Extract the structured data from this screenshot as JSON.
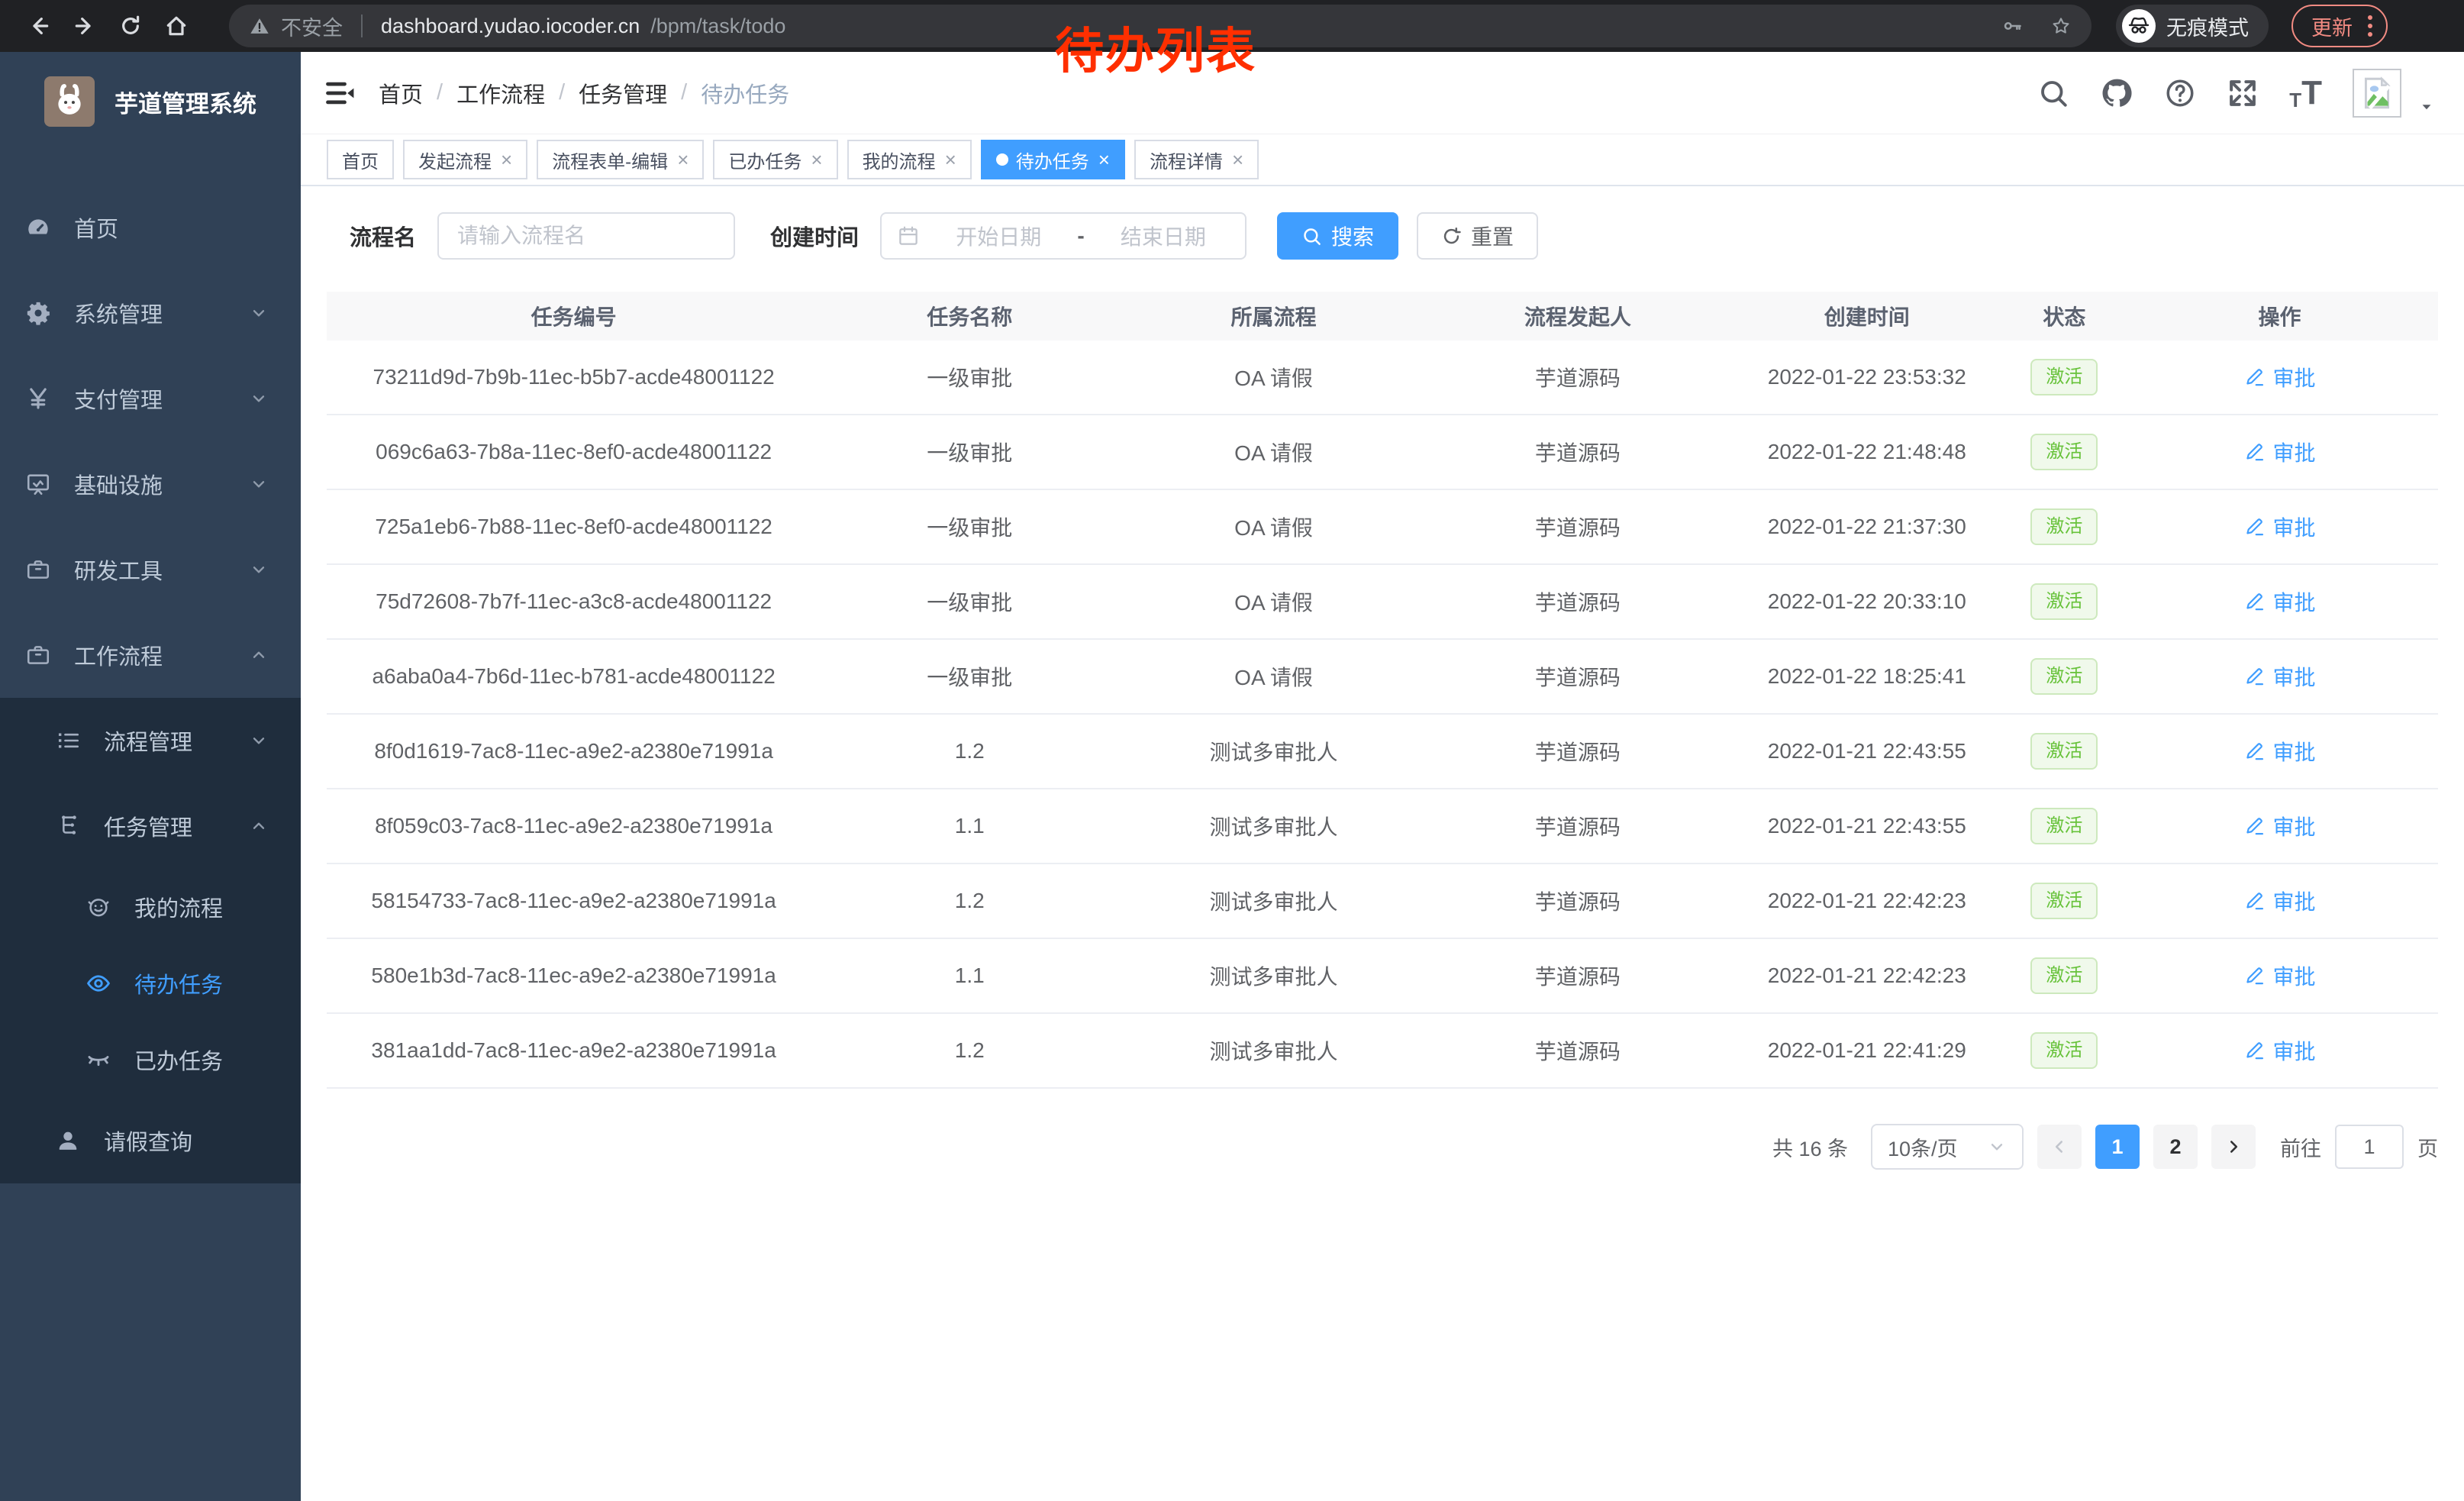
{
  "colors": {
    "accent": "#409eff",
    "sidebar_bg": "#304156",
    "submenu_bg": "#1f2d3d",
    "success_text": "#67c23a",
    "success_bg": "#f0f9eb",
    "annotation_red": "#ff2f00",
    "chrome_bg": "#202124",
    "update_salmon": "#f28b82"
  },
  "browser": {
    "security_label": "不安全",
    "url_host": "dashboard.yudao.iocoder.cn",
    "url_path": "/bpm/task/todo",
    "incognito_label": "无痕模式",
    "update_label": "更新"
  },
  "annotation": {
    "text": "待办列表"
  },
  "sidebar": {
    "title": "芋道管理系统",
    "items": [
      {
        "key": "home",
        "label": "首页",
        "icon": "dashboard",
        "level": 0
      },
      {
        "key": "system-mgmt",
        "label": "系统管理",
        "icon": "gear",
        "level": 0,
        "chevron": "down"
      },
      {
        "key": "payment-mgmt",
        "label": "支付管理",
        "icon": "yen",
        "level": 0,
        "chevron": "down"
      },
      {
        "key": "infrastructure",
        "label": "基础设施",
        "icon": "monitor",
        "level": 0,
        "chevron": "down"
      },
      {
        "key": "dev-tools",
        "label": "研发工具",
        "icon": "briefcase",
        "level": 0,
        "chevron": "down"
      },
      {
        "key": "workflow",
        "label": "工作流程",
        "icon": "briefcase",
        "level": 0,
        "chevron": "up"
      },
      {
        "key": "process-mgmt",
        "label": "流程管理",
        "icon": "list",
        "level": 1,
        "dark": true,
        "chevron": "down"
      },
      {
        "key": "task-mgmt",
        "label": "任务管理",
        "icon": "tree",
        "level": 1,
        "dark": true,
        "chevron": "up"
      },
      {
        "key": "my-process",
        "label": "我的流程",
        "icon": "face",
        "level": 2,
        "dark": true
      },
      {
        "key": "todo-tasks",
        "label": "待办任务",
        "icon": "eye",
        "level": 2,
        "dark": true,
        "active": true
      },
      {
        "key": "done-tasks",
        "label": "已办任务",
        "icon": "eye-closed",
        "level": 2,
        "dark": true
      },
      {
        "key": "leave-query",
        "label": "请假查询",
        "icon": "user",
        "level": 1,
        "dark": true
      }
    ]
  },
  "navbar": {
    "breadcrumb": {
      "items": [
        "首页",
        "工作流程",
        "任务管理",
        "待办任务"
      ]
    }
  },
  "tabs": {
    "items": [
      {
        "key": "home",
        "label": "首页",
        "closable": false
      },
      {
        "key": "start-process",
        "label": "发起流程",
        "closable": true
      },
      {
        "key": "form-edit",
        "label": "流程表单-编辑",
        "closable": true
      },
      {
        "key": "done-tasks",
        "label": "已办任务",
        "closable": true
      },
      {
        "key": "my-process",
        "label": "我的流程",
        "closable": true
      },
      {
        "key": "todo-tasks",
        "label": "待办任务",
        "closable": true,
        "active": true
      },
      {
        "key": "process-detail",
        "label": "流程详情",
        "closable": true
      }
    ]
  },
  "filters": {
    "name_label": "流程名",
    "name_placeholder": "请输入流程名",
    "time_label": "创建时间",
    "start_placeholder": "开始日期",
    "range_separator": "-",
    "end_placeholder": "结束日期",
    "search_label": "搜索",
    "reset_label": "重置"
  },
  "table": {
    "columns": [
      "任务编号",
      "任务名称",
      "所属流程",
      "流程发起人",
      "创建时间",
      "状态",
      "操作"
    ],
    "rows": [
      {
        "id": "73211d9d-7b9b-11ec-b5b7-acde48001122",
        "name": "一级审批",
        "process": "OA 请假",
        "starter": "芋道源码",
        "created": "2022-01-22 23:53:32",
        "status": "激活",
        "action": "审批"
      },
      {
        "id": "069c6a63-7b8a-11ec-8ef0-acde48001122",
        "name": "一级审批",
        "process": "OA 请假",
        "starter": "芋道源码",
        "created": "2022-01-22 21:48:48",
        "status": "激活",
        "action": "审批"
      },
      {
        "id": "725a1eb6-7b88-11ec-8ef0-acde48001122",
        "name": "一级审批",
        "process": "OA 请假",
        "starter": "芋道源码",
        "created": "2022-01-22 21:37:30",
        "status": "激活",
        "action": "审批"
      },
      {
        "id": "75d72608-7b7f-11ec-a3c8-acde48001122",
        "name": "一级审批",
        "process": "OA 请假",
        "starter": "芋道源码",
        "created": "2022-01-22 20:33:10",
        "status": "激活",
        "action": "审批"
      },
      {
        "id": "a6aba0a4-7b6d-11ec-b781-acde48001122",
        "name": "一级审批",
        "process": "OA 请假",
        "starter": "芋道源码",
        "created": "2022-01-22 18:25:41",
        "status": "激活",
        "action": "审批"
      },
      {
        "id": "8f0d1619-7ac8-11ec-a9e2-a2380e71991a",
        "name": "1.2",
        "process": "测试多审批人",
        "starter": "芋道源码",
        "created": "2022-01-21 22:43:55",
        "status": "激活",
        "action": "审批"
      },
      {
        "id": "8f059c03-7ac8-11ec-a9e2-a2380e71991a",
        "name": "1.1",
        "process": "测试多审批人",
        "starter": "芋道源码",
        "created": "2022-01-21 22:43:55",
        "status": "激活",
        "action": "审批"
      },
      {
        "id": "58154733-7ac8-11ec-a9e2-a2380e71991a",
        "name": "1.2",
        "process": "测试多审批人",
        "starter": "芋道源码",
        "created": "2022-01-21 22:42:23",
        "status": "激活",
        "action": "审批"
      },
      {
        "id": "580e1b3d-7ac8-11ec-a9e2-a2380e71991a",
        "name": "1.1",
        "process": "测试多审批人",
        "starter": "芋道源码",
        "created": "2022-01-21 22:42:23",
        "status": "激活",
        "action": "审批"
      },
      {
        "id": "381aa1dd-7ac8-11ec-a9e2-a2380e71991a",
        "name": "1.2",
        "process": "测试多审批人",
        "starter": "芋道源码",
        "created": "2022-01-21 22:41:29",
        "status": "激活",
        "action": "审批"
      }
    ]
  },
  "pagination": {
    "total_label": "共 16 条",
    "page_size_label": "10条/页",
    "pages": [
      "1",
      "2"
    ],
    "active_page": "1",
    "goto_label": "前往",
    "goto_value": "1",
    "page_unit_label": "页"
  }
}
